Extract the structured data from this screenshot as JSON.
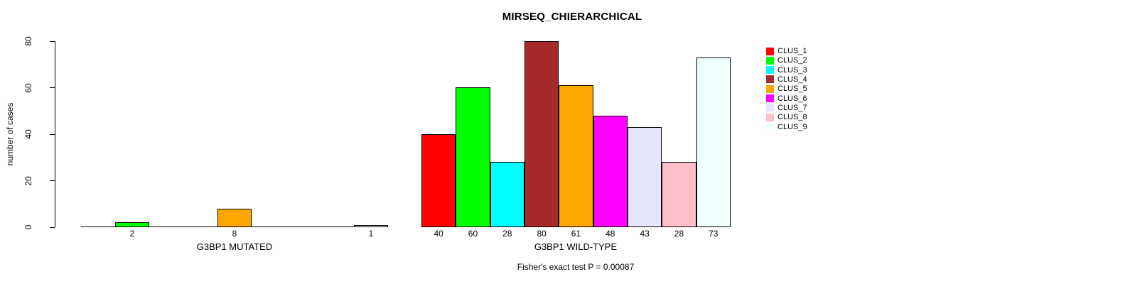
{
  "chart_data": {
    "type": "bar",
    "title": "MIRSEQ_CHIERARCHICAL",
    "ylabel": "number of cases",
    "ylim": [
      0,
      80
    ],
    "yticks": [
      0,
      20,
      40,
      60,
      80
    ],
    "grid": false,
    "legend_position": "right",
    "annotation": "Fisher's exact test P = 0.00087",
    "clusters": [
      "CLUS_1",
      "CLUS_2",
      "CLUS_3",
      "CLUS_4",
      "CLUS_5",
      "CLUS_6",
      "CLUS_7",
      "CLUS_8",
      "CLUS_9"
    ],
    "colors": [
      "#FF0000",
      "#00FF00",
      "#00FFFF",
      "#A52A2A",
      "#FFA500",
      "#FF00FF",
      "#E6E6FA",
      "#FFC0CB",
      "#F0FFFF"
    ],
    "groups": [
      {
        "label": "G3BP1 MUTATED",
        "values": [
          0,
          2,
          0,
          0,
          8,
          0,
          0,
          0,
          1
        ],
        "bar_labels": [
          "",
          "2",
          "",
          "",
          "8",
          "",
          "",
          "",
          "1"
        ]
      },
      {
        "label": "G3BP1 WILD-TYPE",
        "values": [
          40,
          60,
          28,
          80,
          61,
          48,
          43,
          28,
          73
        ],
        "bar_labels": [
          "40",
          "60",
          "28",
          "80",
          "61",
          "48",
          "43",
          "28",
          "73"
        ]
      }
    ]
  }
}
